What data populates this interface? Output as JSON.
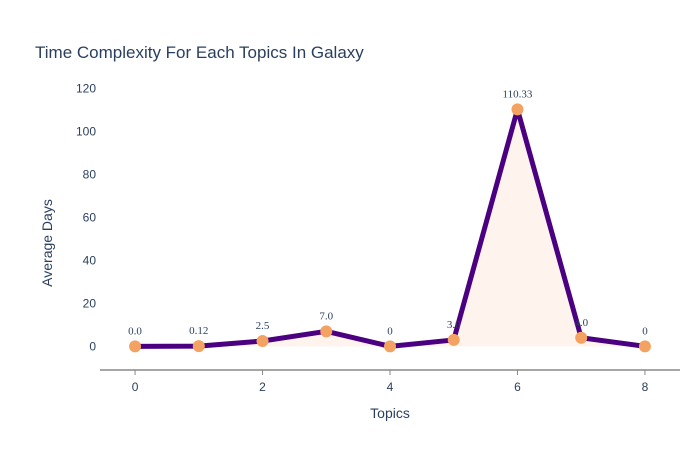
{
  "chart_data": {
    "type": "line",
    "title": "Time Complexity For Each Topics In Galaxy",
    "xlabel": "Topics",
    "ylabel": "Average Days",
    "x": [
      0,
      1,
      2,
      3,
      4,
      5,
      6,
      7,
      8
    ],
    "series": [
      {
        "values": [
          0.0,
          0.12,
          2.5,
          7.0,
          0,
          3.0,
          110.33,
          4.0,
          0
        ],
        "labels": [
          "0.0",
          "0.12",
          "2.5",
          "7.0",
          "0",
          "3.0",
          "110.33",
          "4.0",
          "0"
        ]
      }
    ],
    "xticks": [
      "0",
      "2",
      "4",
      "6",
      "8"
    ],
    "yticks": [
      "0",
      "20",
      "40",
      "60",
      "80",
      "100",
      "120"
    ],
    "xlim": [
      -0.55,
      8.55
    ],
    "ylim": [
      -11,
      124
    ],
    "grid": false,
    "legend": "none",
    "colors": {
      "line": "#4b0082",
      "marker": "#f4a261",
      "fill": "#fff3ee",
      "axis": "#888888",
      "text": "#2a3f5f"
    }
  }
}
